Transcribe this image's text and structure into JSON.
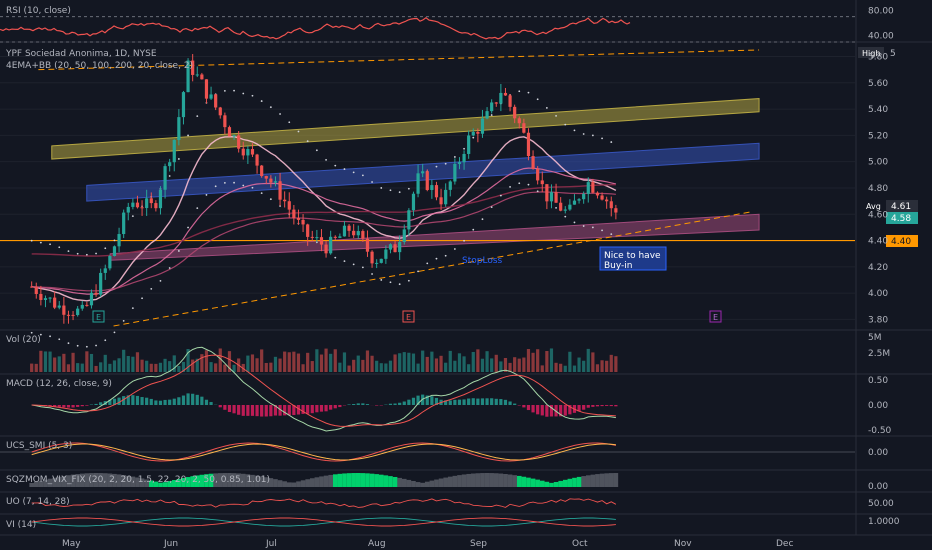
{
  "symbol": {
    "title": "YPF Sociedad Anonima, 1D, NYSE",
    "overlay": "4EMA+BB (20, 50, 100, 200, 20, close, 2)"
  },
  "badges": {
    "high_label": "High",
    "high_value": "5",
    "avg_label": "Avg",
    "avg_value": "4.61",
    "last_value": "4.58",
    "support_value": "4.40"
  },
  "annotations": {
    "stoploss": "StopLoss",
    "buyin_line1": "Nice to have",
    "buyin_line2": "Buy-in",
    "earnings_marker": "E"
  },
  "panes": {
    "rsi": "RSI (10, close)",
    "vol": "Vol (20)",
    "macd": "MACD (12, 26, close, 9)",
    "ucs": "UCS_SMI (5, 3)",
    "sqz": "SQZMOM_VIX_FIX (20, 2, 20, 1.5, 22, 20, 2, 50, 0.85, 1.01)",
    "uo": "UO (7, 14, 28)",
    "vi": "VI (14)"
  },
  "colors": {
    "background": "#131722",
    "up": "#26a69a",
    "down": "#ef5350",
    "yellow_channel": "#b5a642",
    "blue_channel": "#3552b8",
    "pink_channel": "#a04a7a",
    "support": "#ff9800",
    "accent": "#2962ff"
  },
  "chart_data": [
    {
      "type": "candlestick",
      "pane": "price",
      "title": "YPF Sociedad Anonima, 1D, NYSE",
      "x_ticks": [
        "May",
        "Jun",
        "Jul",
        "Aug",
        "Sep",
        "Oct",
        "Nov",
        "Dec"
      ],
      "y_ticks": [
        "3.80",
        "4.00",
        "4.20",
        "4.40",
        "4.60",
        "4.80",
        "5.00",
        "5.20",
        "5.40",
        "5.60",
        "5.80"
      ],
      "ylim": [
        3.75,
        5.88
      ],
      "close_path": [
        {
          "x": "Apr 20",
          "y": 4.05
        },
        {
          "x": "Apr 28",
          "y": 3.9
        },
        {
          "x": "May 5",
          "y": 3.85
        },
        {
          "x": "May 12",
          "y": 4.2
        },
        {
          "x": "May 19",
          "y": 4.7
        },
        {
          "x": "May 26",
          "y": 4.65
        },
        {
          "x": "Jun 2",
          "y": 5.2
        },
        {
          "x": "Jun 6",
          "y": 5.75
        },
        {
          "x": "Jun 12",
          "y": 5.5
        },
        {
          "x": "Jun 19",
          "y": 5.2
        },
        {
          "x": "Jun 26",
          "y": 5.0
        },
        {
          "x": "Jul 3",
          "y": 4.75
        },
        {
          "x": "Jul 10",
          "y": 4.45
        },
        {
          "x": "Jul 17",
          "y": 4.35
        },
        {
          "x": "Jul 24",
          "y": 4.5
        },
        {
          "x": "Jul 31",
          "y": 4.25
        },
        {
          "x": "Aug 7",
          "y": 4.35
        },
        {
          "x": "Aug 14",
          "y": 4.9
        },
        {
          "x": "Aug 21",
          "y": 4.7
        },
        {
          "x": "Aug 28",
          "y": 5.15
        },
        {
          "x": "Sep 4",
          "y": 5.35
        },
        {
          "x": "Sep 8",
          "y": 5.55
        },
        {
          "x": "Sep 14",
          "y": 5.25
        },
        {
          "x": "Sep 21",
          "y": 4.75
        },
        {
          "x": "Sep 28",
          "y": 4.6
        },
        {
          "x": "Oct 3",
          "y": 4.85
        },
        {
          "x": "Oct 8",
          "y": 4.75
        },
        {
          "x": "Oct 12",
          "y": 4.58
        }
      ],
      "channels": [
        {
          "name": "yellow",
          "from": {
            "x": "Apr 26",
            "y_low": 5.02,
            "y_high": 5.12
          },
          "to": {
            "x": "Nov 24",
            "y_low": 5.38,
            "y_high": 5.48
          }
        },
        {
          "name": "blue",
          "from": {
            "x": "May 6",
            "y_low": 4.7,
            "y_high": 4.82
          },
          "to": {
            "x": "Nov 24",
            "y_low": 5.02,
            "y_high": 5.14
          }
        },
        {
          "name": "pink",
          "from": {
            "x": "May 13",
            "y_low": 4.25,
            "y_high": 4.3
          },
          "to": {
            "x": "Nov 24",
            "y_low": 4.48,
            "y_high": 4.6
          }
        }
      ],
      "support_level": 4.4,
      "resistance_dashed": {
        "from": {
          "x": "Apr 22",
          "y": 5.7
        },
        "to": {
          "x": "Nov 24",
          "y": 5.85
        }
      },
      "trend_dashed": {
        "from": {
          "x": "May 14",
          "y": 3.75
        },
        "to": {
          "x": "Nov 22",
          "y": 4.62
        }
      }
    },
    {
      "type": "line",
      "pane": "rsi",
      "title": "RSI (10, close)",
      "y_ticks": [
        "40.00",
        "80.00"
      ],
      "ylim": [
        30,
        90
      ],
      "levels": [
        70,
        30
      ]
    },
    {
      "type": "bar",
      "pane": "volume",
      "title": "Vol (20)",
      "y_ticks": [
        "2.5M",
        "5M"
      ]
    },
    {
      "type": "line",
      "pane": "macd",
      "title": "MACD (12, 26, close, 9)",
      "y_ticks": [
        "0.50",
        "0.00",
        "-0.50"
      ]
    },
    {
      "type": "line",
      "pane": "ucs_smi",
      "title": "UCS_SMI (5, 3)",
      "y_ticks": [
        "0.00"
      ]
    },
    {
      "type": "area",
      "pane": "sqzmom",
      "title": "SQZMOM_VIX_FIX (20, 2, 20, 1.5, 22, 20, 2, 50, 0.85, 1.01)",
      "y_ticks": [
        "0.00"
      ]
    },
    {
      "type": "line",
      "pane": "uo",
      "title": "UO (7, 14, 28)",
      "y_ticks": [
        "50.00"
      ]
    },
    {
      "type": "line",
      "pane": "vi",
      "title": "VI (14)",
      "y_ticks": [
        "1.0000"
      ]
    }
  ]
}
